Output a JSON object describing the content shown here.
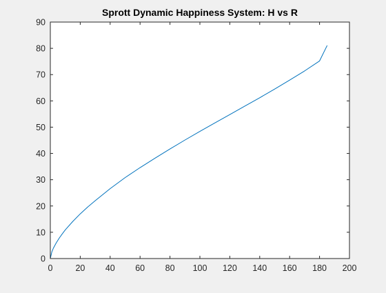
{
  "chart_data": {
    "type": "line",
    "title": "Sprott Dynamic Happiness System: H vs R",
    "xlabel": "",
    "ylabel": "",
    "xlim": [
      0,
      200
    ],
    "ylim": [
      0,
      90
    ],
    "xticks": [
      0,
      20,
      40,
      60,
      80,
      100,
      120,
      140,
      160,
      180,
      200
    ],
    "yticks": [
      0,
      10,
      20,
      30,
      40,
      50,
      60,
      70,
      80,
      90
    ],
    "grid": false,
    "legend": "none",
    "series": [
      {
        "color": "#0072bd",
        "x": [
          0,
          1,
          2,
          4,
          6,
          8,
          10,
          15,
          20,
          25,
          30,
          40,
          50,
          60,
          70,
          80,
          90,
          100,
          110,
          120,
          130,
          140,
          150,
          160,
          170,
          180,
          185
        ],
        "y": [
          0,
          2.5,
          3.9,
          6.0,
          7.8,
          9.4,
          10.9,
          14.1,
          17.0,
          19.6,
          22.0,
          26.6,
          30.8,
          34.6,
          38.2,
          41.7,
          45.1,
          48.4,
          51.6,
          54.8,
          58.0,
          61.2,
          64.5,
          67.9,
          71.4,
          75.2,
          81.0
        ]
      }
    ]
  },
  "colors": {
    "figure_background": "#f0f0f0",
    "axes_background": "#ffffff",
    "axis_line": "#262626"
  }
}
